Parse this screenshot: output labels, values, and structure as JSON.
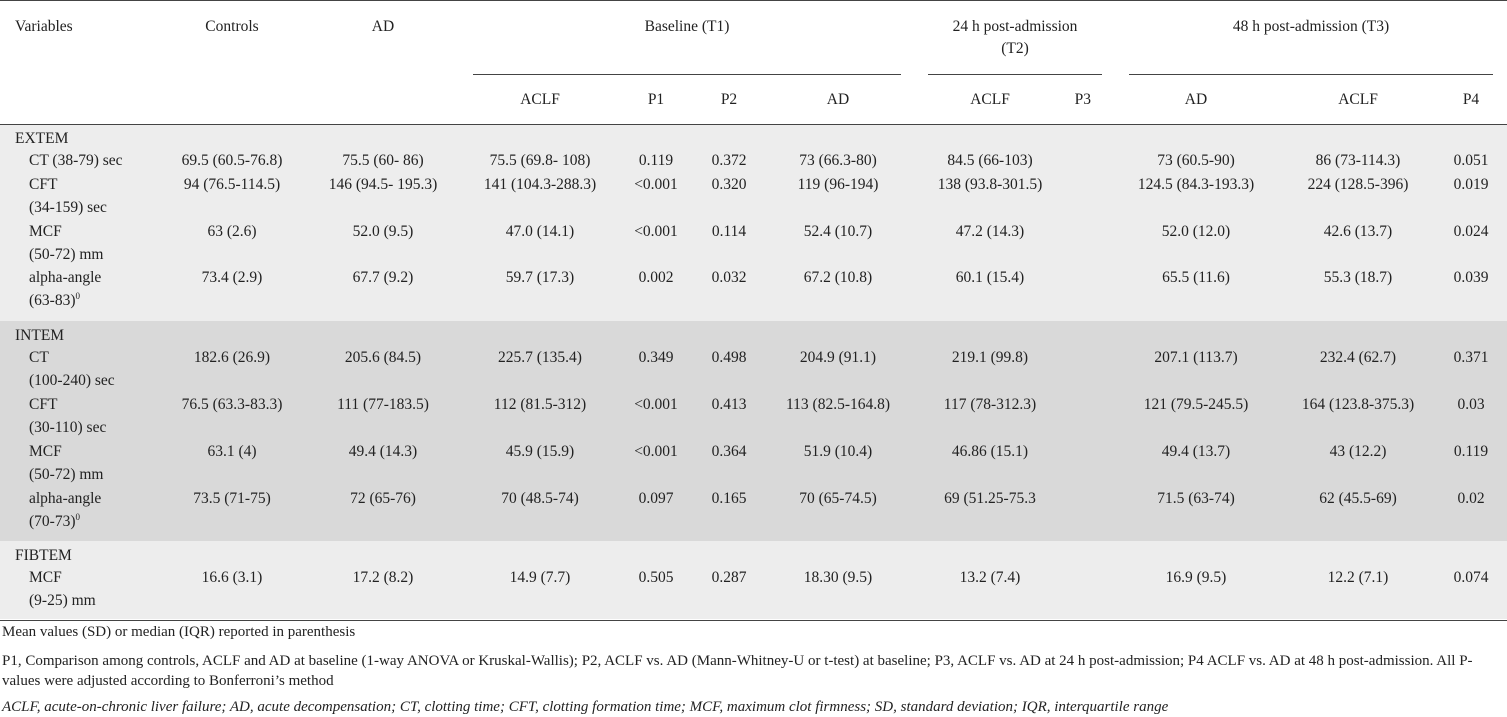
{
  "header": {
    "variables": "Variables",
    "controls": "Controls",
    "ad": "AD",
    "baseline": "Baseline (T1)",
    "t2_line1": "24 h post-admission",
    "t2_line2": "(T2)",
    "t3": "48 h post-admission (T3)",
    "sub": [
      "ACLF",
      "P1",
      "P2",
      "AD",
      "ACLF",
      "P3",
      "AD",
      "ACLF",
      "P4"
    ]
  },
  "sections": [
    {
      "name": "EXTEM",
      "rows": [
        {
          "label": [
            "CT (38-79) sec"
          ],
          "cells": [
            "69.5 (60.5-76.8)",
            "75.5 (60- 86)",
            "75.5 (69.8- 108)",
            "0.119",
            "0.372",
            "73 (66.3-80)",
            "84.5 (66-103)",
            "",
            "73 (60.5-90)",
            "86 (73-114.3)",
            "0.051"
          ]
        },
        {
          "label": [
            "CFT",
            "(34-159) sec"
          ],
          "cells": [
            "94 (76.5-114.5)",
            "146 (94.5- 195.3)",
            "141 (104.3-288.3)",
            "<0.001",
            "0.320",
            "119 (96-194)",
            "138 (93.8-301.5)",
            "",
            "124.5 (84.3-193.3)",
            "224 (128.5-396)",
            "0.019"
          ]
        },
        {
          "label": [
            "MCF",
            "(50-72) mm"
          ],
          "cells": [
            "63 (2.6)",
            "52.0 (9.5)",
            "47.0 (14.1)",
            "<0.001",
            "0.114",
            "52.4 (10.7)",
            "47.2 (14.3)",
            "",
            "52.0 (12.0)",
            "42.6 (13.7)",
            "0.024"
          ]
        },
        {
          "label": [
            "alpha-angle",
            "(63-83)"
          ],
          "sup": "0",
          "cells": [
            "73.4 (2.9)",
            "67.7 (9.2)",
            "59.7 (17.3)",
            "0.002",
            "0.032",
            "67.2 (10.8)",
            "60.1 (15.4)",
            "",
            "65.5 (11.6)",
            "55.3 (18.7)",
            "0.039"
          ]
        }
      ]
    },
    {
      "name": "INTEM",
      "rows": [
        {
          "label": [
            "CT",
            "(100-240) sec"
          ],
          "cells": [
            "182.6 (26.9)",
            "205.6 (84.5)",
            "225.7 (135.4)",
            "0.349",
            "0.498",
            "204.9 (91.1)",
            "219.1 (99.8)",
            "",
            "207.1 (113.7)",
            "232.4 (62.7)",
            "0.371"
          ]
        },
        {
          "label": [
            "CFT",
            "(30-110) sec"
          ],
          "cells": [
            "76.5 (63.3-83.3)",
            "111 (77-183.5)",
            "112 (81.5-312)",
            "<0.001",
            "0.413",
            "113 (82.5-164.8)",
            "117 (78-312.3)",
            "",
            "121 (79.5-245.5)",
            "164 (123.8-375.3)",
            "0.03"
          ]
        },
        {
          "label": [
            "MCF",
            "(50-72) mm"
          ],
          "cells": [
            "63.1 (4)",
            "49.4 (14.3)",
            "45.9 (15.9)",
            "<0.001",
            "0.364",
            "51.9 (10.4)",
            "46.86 (15.1)",
            "",
            "49.4 (13.7)",
            "43 (12.2)",
            "0.119"
          ]
        },
        {
          "label": [
            "alpha-angle",
            "(70-73)"
          ],
          "sup": "0",
          "cells": [
            "73.5 (71-75)",
            "72 (65-76)",
            "70 (48.5-74)",
            "0.097",
            "0.165",
            "70 (65-74.5)",
            "69 (51.25-75.3",
            "",
            "71.5 (63-74)",
            "62 (45.5-69)",
            "0.02"
          ]
        }
      ]
    },
    {
      "name": "FIBTEM",
      "rows": [
        {
          "label": [
            "MCF",
            "(9-25) mm"
          ],
          "cells": [
            "16.6 (3.1)",
            "17.2 (8.2)",
            "14.9 (7.7)",
            "0.505",
            "0.287",
            "18.30 (9.5)",
            "13.2 (7.4)",
            "",
            "16.9 (9.5)",
            "12.2 (7.1)",
            "0.074"
          ]
        }
      ]
    }
  ],
  "notes": {
    "n1": "Mean values (SD) or median (IQR) reported in parenthesis",
    "n2": "P1, Comparison among controls, ACLF and AD at baseline (1-way ANOVA or Kruskal-Wallis); P2, ACLF vs. AD (Mann-Whitney-U or t-test) at baseline; P3, ACLF vs. AD at 24 h post-admission; P4 ACLF vs. AD at 48 h post-admission. All P-values were adjusted according to Bonferroni’s method",
    "n3": "ACLF, acute-on-chronic liver failure; AD, acute decompensation; CT, clotting time; CFT, clotting formation time; MCF, maximum clot firmness; SD, standard deviation; IQR, interquartile range"
  }
}
